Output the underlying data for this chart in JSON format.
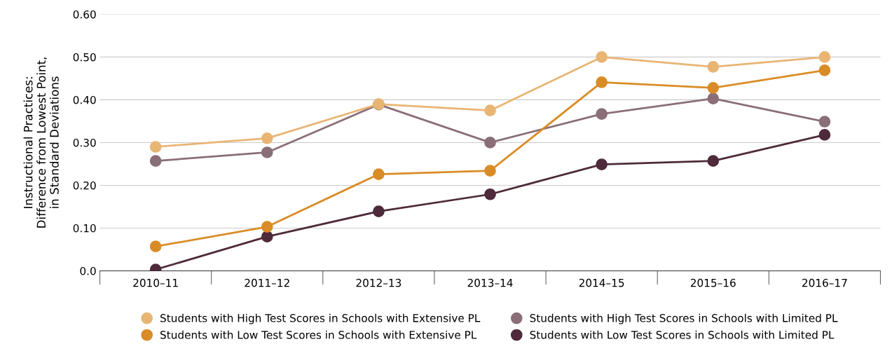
{
  "chart_data": {
    "type": "line",
    "ylabel": "Instructional Practices:\nDifference from Lowest Point,\nin Standard Deviations",
    "categories": [
      "2010–11",
      "2011–12",
      "2012–13",
      "2013–14",
      "2014–15",
      "2015–16",
      "2016–17"
    ],
    "series": [
      {
        "name": "Students with High Test Scores in Schools with Extensive PL",
        "color": "#e8b573",
        "values": [
          0.29,
          0.31,
          0.39,
          0.375,
          0.5,
          0.477,
          0.5
        ]
      },
      {
        "name": "Students with Low Test Scores in Schools with Extensive PL",
        "color": "#d98c26",
        "values": [
          0.057,
          0.103,
          0.226,
          0.234,
          0.441,
          0.428,
          0.469
        ]
      },
      {
        "name": "Students with High Test Scores in Schools with Limited PL",
        "color": "#8a6e78",
        "values": [
          0.257,
          0.277,
          0.389,
          0.3,
          0.367,
          0.403,
          0.349
        ]
      },
      {
        "name": "Students with Low Test Scores in Schools with Limited PL",
        "color": "#4e2a3a",
        "values": [
          0.003,
          0.08,
          0.139,
          0.179,
          0.249,
          0.257,
          0.318
        ]
      }
    ],
    "ylim": [
      0,
      0.6
    ],
    "yticks": [
      {
        "value": 0,
        "label": "0.0"
      },
      {
        "value": 0.1,
        "label": "0.10"
      },
      {
        "value": 0.2,
        "label": "0.20"
      },
      {
        "value": 0.3,
        "label": "0.30"
      },
      {
        "value": 0.4,
        "label": "0.40"
      },
      {
        "value": 0.5,
        "label": "0.50"
      },
      {
        "value": 0.6,
        "label": "0.60"
      }
    ],
    "grid": "y",
    "legend": "bottom",
    "marker": "circle",
    "line_style": "solid"
  }
}
